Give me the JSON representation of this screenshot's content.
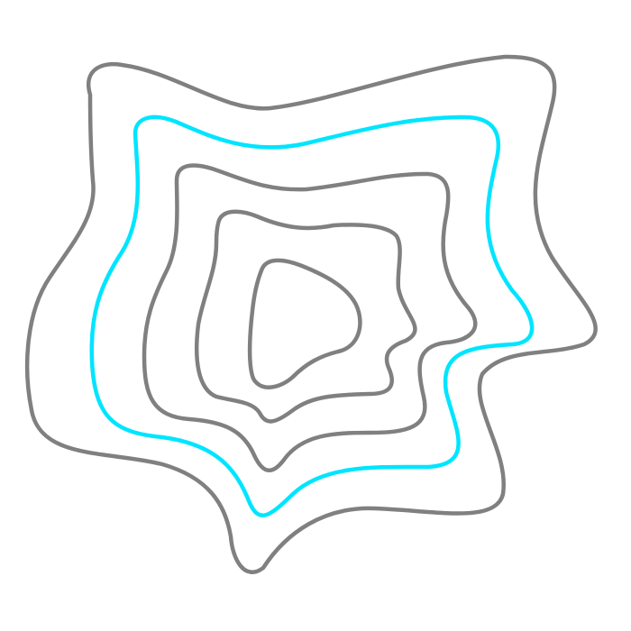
{
  "background_color": "#ffffff",
  "contours": [
    {
      "id": "outer",
      "color": "#808080",
      "highlighted": false
    },
    {
      "id": "ring-2",
      "color": "#00e5ff",
      "highlighted": true
    },
    {
      "id": "ring-3",
      "color": "#808080",
      "highlighted": false
    },
    {
      "id": "ring-4",
      "color": "#808080",
      "highlighted": false
    },
    {
      "id": "inner",
      "color": "#808080",
      "highlighted": false
    }
  ]
}
